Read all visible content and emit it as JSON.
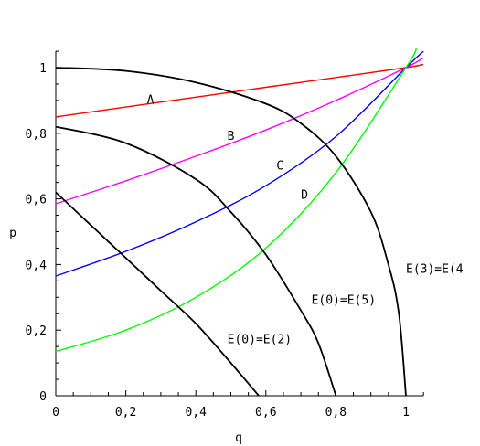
{
  "chart_data": {
    "type": "line",
    "xlabel": "q",
    "ylabel": "p",
    "xlim": [
      0,
      1.05
    ],
    "ylim": [
      0,
      1.05
    ],
    "x_ticks": [
      {
        "value": 0,
        "label": "0"
      },
      {
        "value": 0.2,
        "label": "0,2"
      },
      {
        "value": 0.4,
        "label": "0,4"
      },
      {
        "value": 0.6,
        "label": "0,6"
      },
      {
        "value": 0.8,
        "label": "0,8"
      },
      {
        "value": 1,
        "label": "1"
      }
    ],
    "y_ticks": [
      {
        "value": 0,
        "label": "0"
      },
      {
        "value": 0.2,
        "label": "0,2"
      },
      {
        "value": 0.4,
        "label": "0,4"
      },
      {
        "value": 0.6,
        "label": "0,6"
      },
      {
        "value": 0.8,
        "label": "0,8"
      },
      {
        "value": 1,
        "label": "1"
      }
    ],
    "grid": false,
    "series": [
      {
        "name": "A",
        "color": "#ff0000",
        "x": [
          0,
          0.2,
          0.4,
          0.6,
          0.8,
          1.0,
          1.05
        ],
        "y": [
          0.85,
          0.88,
          0.91,
          0.94,
          0.97,
          1.0,
          1.01
        ]
      },
      {
        "name": "B",
        "color": "#ff00ff",
        "x": [
          0,
          0.2,
          0.4,
          0.6,
          0.8,
          1.0,
          1.05
        ],
        "y": [
          0.585,
          0.655,
          0.73,
          0.81,
          0.9,
          1.0,
          1.03
        ]
      },
      {
        "name": "C",
        "color": "#0000ff",
        "x": [
          0,
          0.2,
          0.4,
          0.6,
          0.8,
          1.0,
          1.05
        ],
        "y": [
          0.365,
          0.44,
          0.53,
          0.64,
          0.79,
          1.0,
          1.05
        ]
      },
      {
        "name": "D",
        "color": "#00ff00",
        "x": [
          0,
          0.2,
          0.4,
          0.6,
          0.8,
          1.0,
          1.03
        ],
        "y": [
          0.135,
          0.2,
          0.3,
          0.45,
          0.68,
          1.0,
          1.06
        ]
      },
      {
        "name": "E(3)=E(4",
        "color": "#000000",
        "x": [
          0,
          0.2,
          0.4,
          0.6,
          0.7,
          0.8,
          0.9,
          0.95,
          0.98,
          1.0
        ],
        "y": [
          1.0,
          0.99,
          0.955,
          0.89,
          0.83,
          0.73,
          0.56,
          0.4,
          0.25,
          0.0
        ]
      },
      {
        "name": "E(0)=E(5)",
        "color": "#000000",
        "x": [
          0,
          0.2,
          0.4,
          0.5,
          0.6,
          0.7,
          0.75,
          0.8
        ],
        "y": [
          0.82,
          0.77,
          0.66,
          0.56,
          0.43,
          0.26,
          0.16,
          0.0
        ]
      },
      {
        "name": "E(0)=E(2)",
        "color": "#000000",
        "x": [
          0,
          0.1,
          0.2,
          0.3,
          0.4,
          0.5,
          0.58
        ],
        "y": [
          0.62,
          0.52,
          0.42,
          0.32,
          0.22,
          0.1,
          0.0
        ]
      }
    ],
    "annotations": [
      {
        "text": "A",
        "x": 0.26,
        "y": 0.89
      },
      {
        "text": "B",
        "x": 0.49,
        "y": 0.78
      },
      {
        "text": "C",
        "x": 0.63,
        "y": 0.69
      },
      {
        "text": "D",
        "x": 0.7,
        "y": 0.6
      },
      {
        "text": "E(3)=E(4",
        "x": 1.0,
        "y": 0.375
      },
      {
        "text": "E(0)=E(5)",
        "x": 0.73,
        "y": 0.28
      },
      {
        "text": "E(0)=E(2)",
        "x": 0.49,
        "y": 0.16
      }
    ]
  }
}
